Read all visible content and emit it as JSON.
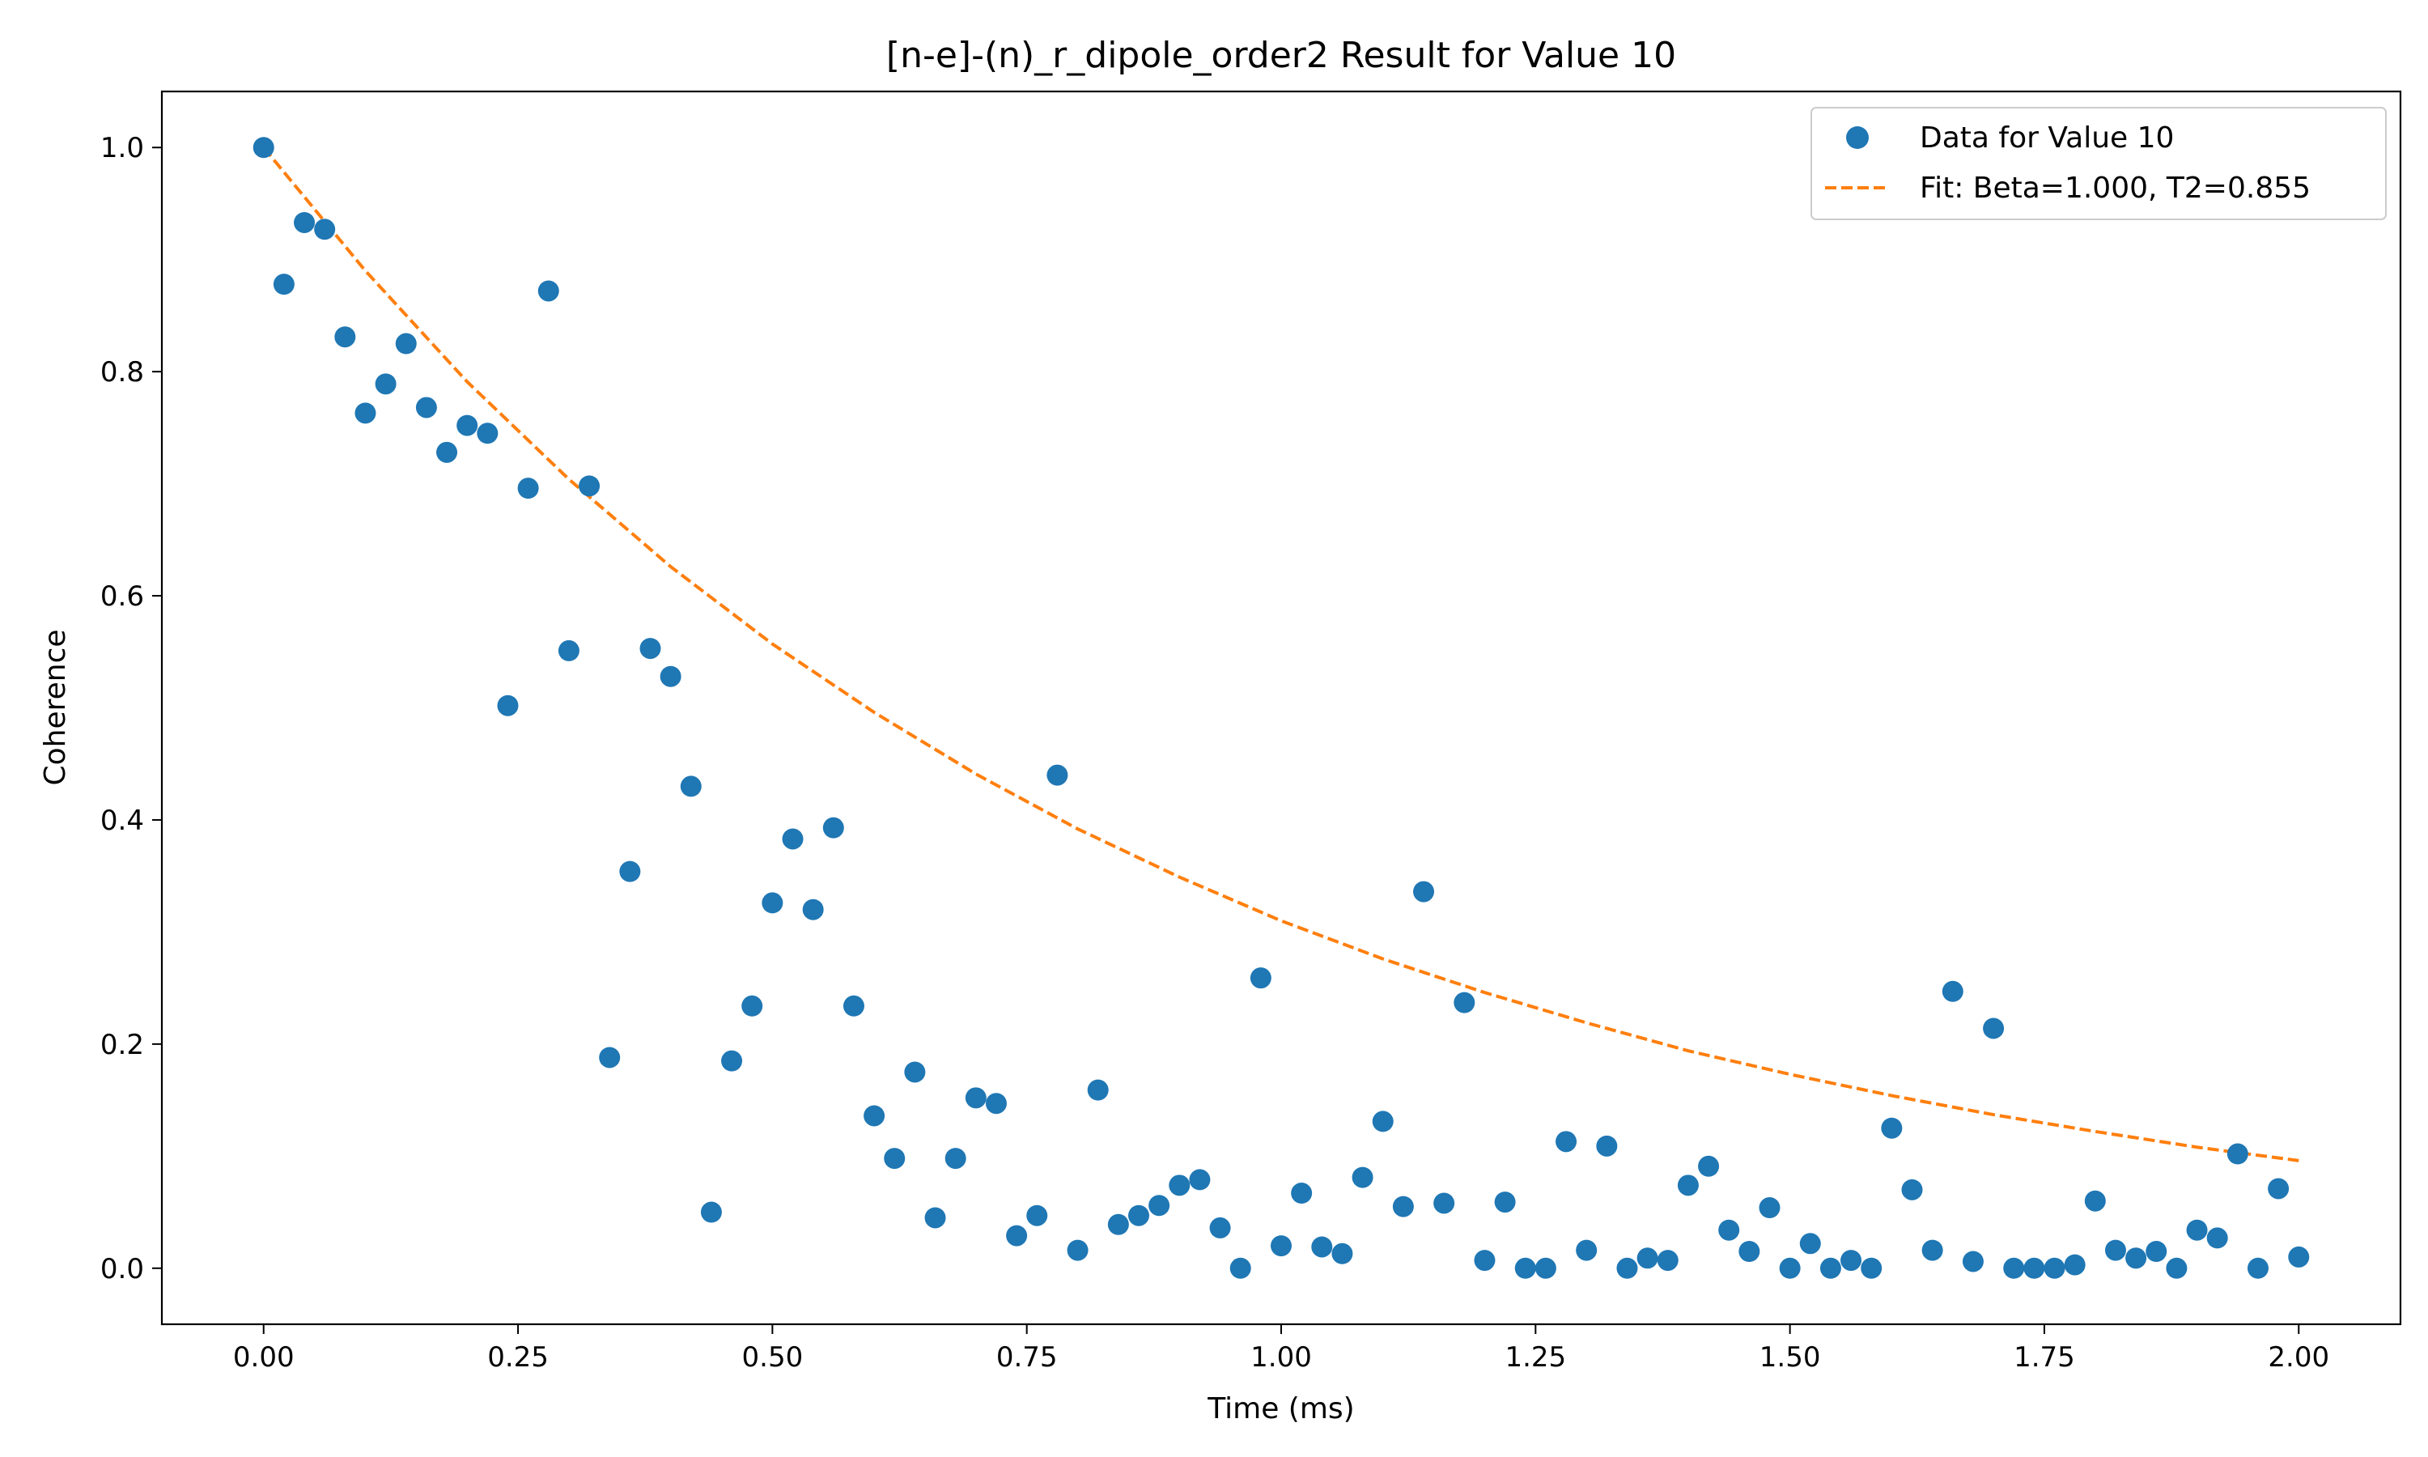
{
  "chart_data": {
    "type": "scatter",
    "title": "[n-e]-(n)_r_dipole_order2 Result for Value 10",
    "xlabel": "Time (ms)",
    "ylabel": "Coherence",
    "xlim": [
      -0.1,
      2.1
    ],
    "ylim": [
      -0.05,
      1.05
    ],
    "x_ticks": [
      0.0,
      0.25,
      0.5,
      0.75,
      1.0,
      1.25,
      1.5,
      1.75,
      2.0
    ],
    "x_tick_labels": [
      "0.00",
      "0.25",
      "0.50",
      "0.75",
      "1.00",
      "1.25",
      "1.50",
      "1.75",
      "2.00"
    ],
    "y_ticks": [
      0.0,
      0.2,
      0.4,
      0.6,
      0.8,
      1.0
    ],
    "y_tick_labels": [
      "0.0",
      "0.2",
      "0.4",
      "0.6",
      "0.8",
      "1.0"
    ],
    "grid": false,
    "legend_position": "top-right",
    "series": [
      {
        "name": "Data for Value 10",
        "kind": "scatter",
        "color": "#1f77b4",
        "x": [
          0.0,
          0.02,
          0.04,
          0.06,
          0.08,
          0.1,
          0.12,
          0.14,
          0.16,
          0.18,
          0.2,
          0.22,
          0.24,
          0.26,
          0.28,
          0.3,
          0.32,
          0.34,
          0.36,
          0.38,
          0.4,
          0.42,
          0.44,
          0.46,
          0.48,
          0.5,
          0.52,
          0.54,
          0.56,
          0.58,
          0.6,
          0.62,
          0.64,
          0.66,
          0.68,
          0.7,
          0.72,
          0.74,
          0.76,
          0.78,
          0.8,
          0.82,
          0.84,
          0.86,
          0.88,
          0.9,
          0.92,
          0.94,
          0.96,
          0.98,
          1.0,
          1.02,
          1.04,
          1.06,
          1.08,
          1.1,
          1.12,
          1.14,
          1.16,
          1.18,
          1.2,
          1.22,
          1.24,
          1.26,
          1.28,
          1.3,
          1.32,
          1.34,
          1.36,
          1.38,
          1.4,
          1.42,
          1.44,
          1.46,
          1.48,
          1.5,
          1.52,
          1.54,
          1.56,
          1.58,
          1.6,
          1.62,
          1.64,
          1.66,
          1.68,
          1.7,
          1.72,
          1.74,
          1.76,
          1.78,
          1.8,
          1.82,
          1.84,
          1.86,
          1.88,
          1.9,
          1.92,
          1.94,
          1.96,
          1.98,
          2.0
        ],
        "y": [
          1.0,
          0.878,
          0.933,
          0.927,
          0.831,
          0.763,
          0.789,
          0.825,
          0.768,
          0.728,
          0.752,
          0.745,
          0.502,
          0.696,
          0.872,
          0.551,
          0.698,
          0.188,
          0.354,
          0.553,
          0.528,
          0.43,
          0.05,
          0.185,
          0.234,
          0.326,
          0.383,
          0.32,
          0.393,
          0.234,
          0.136,
          0.098,
          0.175,
          0.045,
          0.098,
          0.152,
          0.147,
          0.029,
          0.047,
          0.44,
          0.016,
          0.159,
          0.039,
          0.047,
          0.056,
          0.074,
          0.079,
          0.036,
          0.0,
          0.259,
          0.02,
          0.067,
          0.019,
          0.013,
          0.081,
          0.131,
          0.055,
          0.336,
          0.058,
          0.237,
          0.007,
          0.059,
          0.0,
          0.0,
          0.113,
          0.016,
          0.109,
          0.0,
          0.009,
          0.007,
          0.074,
          0.091,
          0.034,
          0.015,
          0.054,
          0.0,
          0.022,
          0.0,
          0.007,
          0.0,
          0.125,
          0.07,
          0.016,
          0.247,
          0.006,
          0.214,
          0.0,
          0.0,
          0.0,
          0.003,
          0.06,
          0.016,
          0.009,
          0.015,
          0.0,
          0.034,
          0.027,
          0.102,
          0.0,
          0.071,
          0.01
        ]
      },
      {
        "name": "Fit: Beta=1.000, T2=0.855",
        "kind": "line",
        "style": "dashed",
        "color": "#ff7f0e",
        "model": "exp(-(t/T2)^Beta)",
        "parameters": {
          "Beta": 1.0,
          "T2": 0.855
        },
        "x": [
          0.0,
          0.1,
          0.2,
          0.3,
          0.4,
          0.5,
          0.6,
          0.7,
          0.8,
          0.9,
          1.0,
          1.1,
          1.2,
          1.3,
          1.4,
          1.5,
          1.6,
          1.7,
          1.8,
          1.9,
          2.0
        ],
        "y": [
          1.0,
          0.89,
          0.791,
          0.704,
          0.626,
          0.557,
          0.496,
          0.441,
          0.392,
          0.349,
          0.31,
          0.276,
          0.246,
          0.219,
          0.194,
          0.173,
          0.154,
          0.137,
          0.122,
          0.108,
          0.096
        ]
      }
    ]
  }
}
